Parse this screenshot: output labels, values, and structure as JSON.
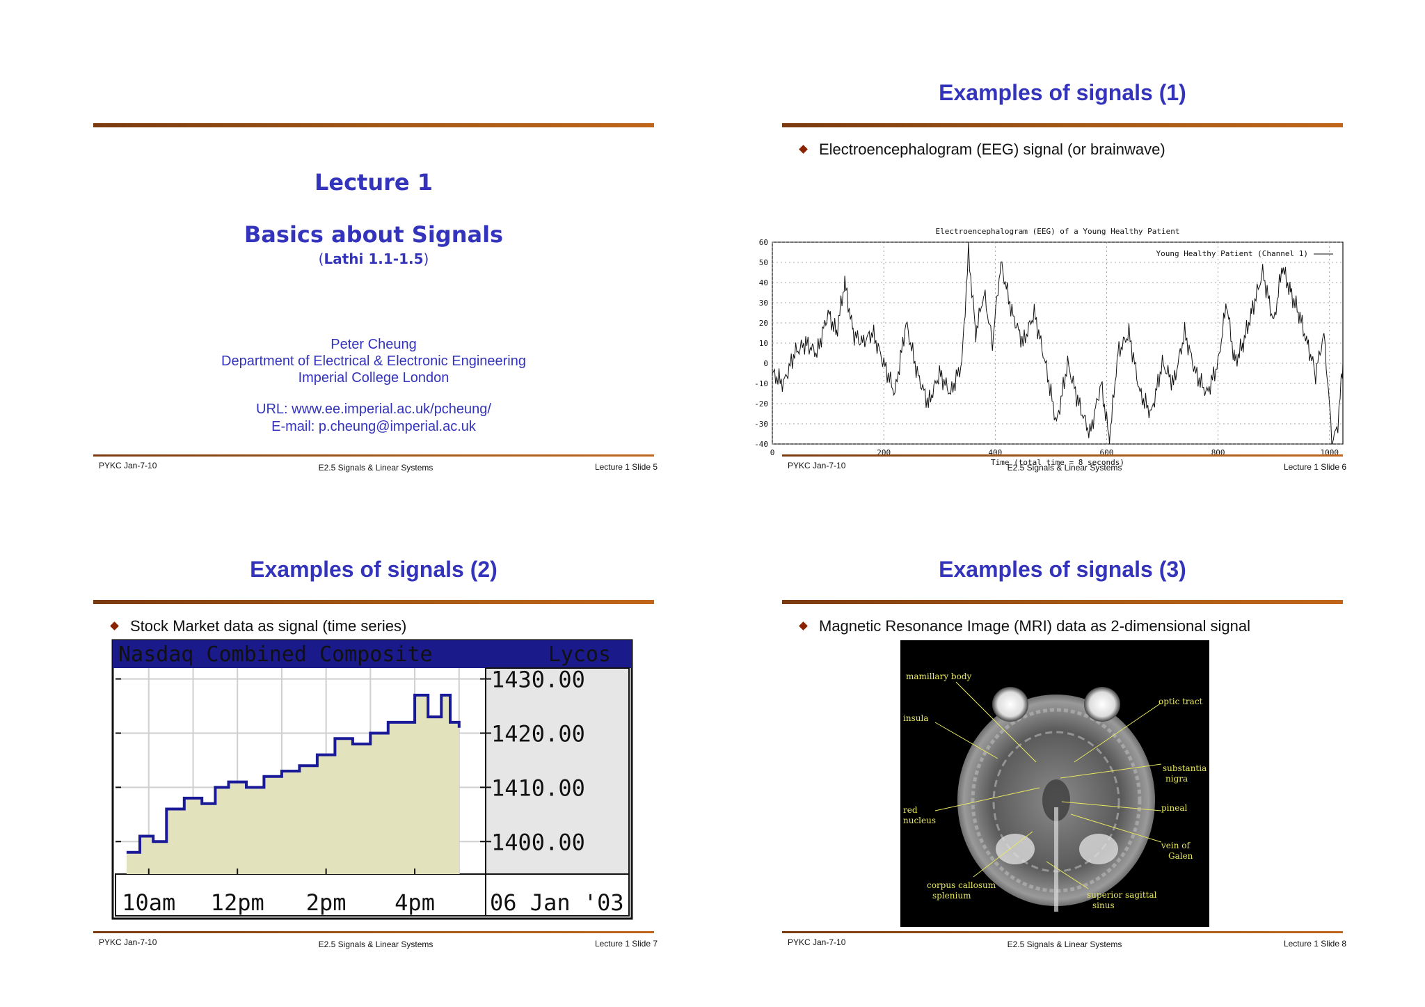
{
  "slides": [
    {
      "title": "",
      "heading1": "Lecture 1",
      "heading2": "Basics about Signals",
      "ref_open": "(",
      "ref": "Lathi 1.1-1.5",
      "ref_close": ")",
      "author": "Peter Cheung",
      "dept": "Department of Electrical & Electronic Engineering",
      "college": "Imperial College London",
      "url": "URL: www.ee.imperial.ac.uk/pcheung/",
      "email": "E-mail: p.cheung@imperial.ac.uk",
      "footer_left": "PYKC Jan-7-10",
      "footer_center": "E2.5 Signals & Linear Systems",
      "footer_right": "Lecture 1 Slide 5"
    },
    {
      "title": "Examples of signals (1)",
      "bullet": "Electroencephalogram (EEG) signal (or brainwave)",
      "footer_left": "PYKC Jan-7-10",
      "footer_center": "E2.5 Signals & Linear Systems",
      "footer_right": "Lecture 1 Slide 6"
    },
    {
      "title": "Examples of signals (2)",
      "bullet": "Stock Market data as signal (time series)",
      "footer_left": "PYKC Jan-7-10",
      "footer_center": "E2.5 Signals & Linear Systems",
      "footer_right": "Lecture 1 Slide 7"
    },
    {
      "title": "Examples of signals (3)",
      "bullet": "Magnetic Resonance Image (MRI) data as 2-dimensional signal",
      "footer_left": "PYKC Jan-7-10",
      "footer_center": "E2.5 Signals & Linear Systems",
      "footer_right": "Lecture 1 Slide 8"
    }
  ],
  "eeg_chart": {
    "type": "line",
    "title": "Electroencephalogram (EEG) of a Young Healthy Patient",
    "legend": "Young Healthy Patient (Channel 1)",
    "xlabel": "Time (total time = 8 seconds)",
    "xlim": [
      0,
      1024
    ],
    "ylim": [
      -40,
      60
    ],
    "xticks": [
      "0",
      "200",
      "400",
      "600",
      "800",
      "1000"
    ],
    "yticks": [
      "60",
      "50",
      "40",
      "30",
      "20",
      "10",
      "0",
      "-10",
      "-20",
      "-30",
      "-40"
    ],
    "grid": true,
    "x": [
      0,
      20,
      40,
      60,
      80,
      100,
      115,
      130,
      145,
      160,
      180,
      200,
      220,
      240,
      260,
      280,
      300,
      320,
      340,
      352,
      365,
      380,
      395,
      410,
      430,
      450,
      470,
      490,
      510,
      530,
      550,
      570,
      590,
      605,
      620,
      640,
      660,
      680,
      700,
      720,
      740,
      760,
      780,
      800,
      815,
      830,
      845,
      860,
      880,
      900,
      915,
      930,
      945,
      960,
      975,
      990,
      1005,
      1015,
      1024
    ],
    "y": [
      -5,
      -10,
      5,
      10,
      5,
      25,
      15,
      40,
      15,
      10,
      15,
      0,
      -15,
      20,
      -5,
      -20,
      -5,
      -15,
      0,
      55,
      15,
      35,
      10,
      50,
      25,
      10,
      25,
      0,
      -30,
      0,
      -20,
      -35,
      -10,
      -38,
      5,
      15,
      -15,
      -25,
      0,
      -10,
      15,
      -5,
      -15,
      0,
      30,
      0,
      10,
      25,
      45,
      20,
      48,
      35,
      25,
      10,
      -5,
      15,
      -40,
      -30,
      0
    ]
  },
  "nasdaq_chart": {
    "type": "area",
    "header": "Nasdaq Combined Composite",
    "brand": "Lycos",
    "date": "06 Jan '03",
    "xticks": [
      "10am",
      "12pm",
      "2pm",
      "4pm"
    ],
    "yticks": [
      "1430.00",
      "1420.00",
      "1410.00",
      "1400.00"
    ],
    "ylim": [
      1394,
      1432
    ],
    "x_hours": [
      9.5,
      9.8,
      10.1,
      10.4,
      10.8,
      11.2,
      11.5,
      11.8,
      12.2,
      12.6,
      13.0,
      13.4,
      13.8,
      14.2,
      14.6,
      15.0,
      15.4,
      15.7,
      16.0,
      16.3,
      16.6,
      16.8,
      17.0
    ],
    "values": [
      1398,
      1401,
      1400,
      1406,
      1408,
      1407,
      1410,
      1411,
      1410,
      1412,
      1413,
      1414,
      1416,
      1419,
      1418,
      1420,
      1422,
      1422,
      1427,
      1423,
      1427,
      1422,
      1421
    ]
  },
  "mri": {
    "labels": [
      "mamillary body",
      "optic tract",
      "insula",
      "substantia",
      "nigra",
      "pineal",
      "red",
      "nucleus",
      "vein of",
      "Galen",
      "corpus callosum",
      "splenium",
      "superior sagittal",
      "sinus"
    ]
  },
  "colors": {
    "title_blue": "#3333bb",
    "bar_brown": "#a65a16",
    "nasdaq_header": "#1a1a8a",
    "nasdaq_fill": "#e2e2bd",
    "nasdaq_line": "#1a1a99",
    "mri_label": "#e8e860"
  }
}
